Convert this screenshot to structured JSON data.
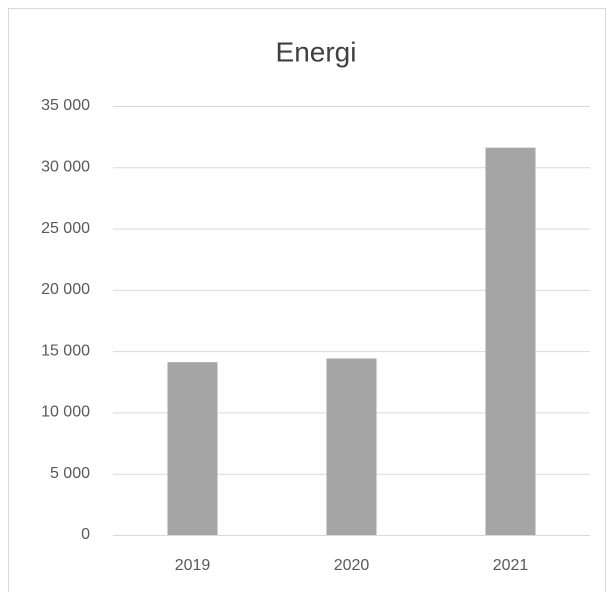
{
  "chart_data": {
    "type": "bar",
    "title": "Energi",
    "categories": [
      "2019",
      "2020",
      "2021"
    ],
    "values": [
      14100,
      14400,
      31600
    ],
    "color": "#a5a5a5",
    "ylim": [
      0,
      35000
    ],
    "yticks": [
      0,
      {
        "value": 5000,
        "label": "5 000"
      },
      {
        "value": 10000,
        "label": "10 000"
      },
      {
        "value": 15000,
        "label": "15 000"
      },
      {
        "value": 20000,
        "label": "20 000"
      },
      {
        "value": 25000,
        "label": "25 000"
      },
      {
        "value": 30000,
        "label": "30 000"
      },
      {
        "value": 35000,
        "label": "35 000"
      }
    ],
    "grid": true
  }
}
